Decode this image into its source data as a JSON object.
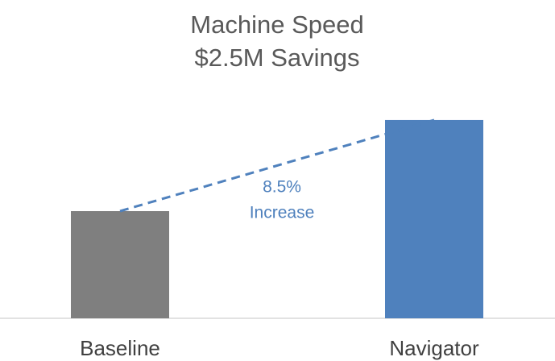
{
  "chart_data": {
    "type": "bar",
    "title": "Machine Speed",
    "subtitle": "$2.5M Savings",
    "categories": [
      "Baseline",
      "Navigator"
    ],
    "values": [
      100,
      108.5
    ],
    "colors": [
      "#7f7f7f",
      "#4f81bd"
    ],
    "ylim": [
      90,
      110
    ],
    "annotation": [
      "8.5%",
      "Increase"
    ],
    "annotation_color": "#4f81bd"
  }
}
